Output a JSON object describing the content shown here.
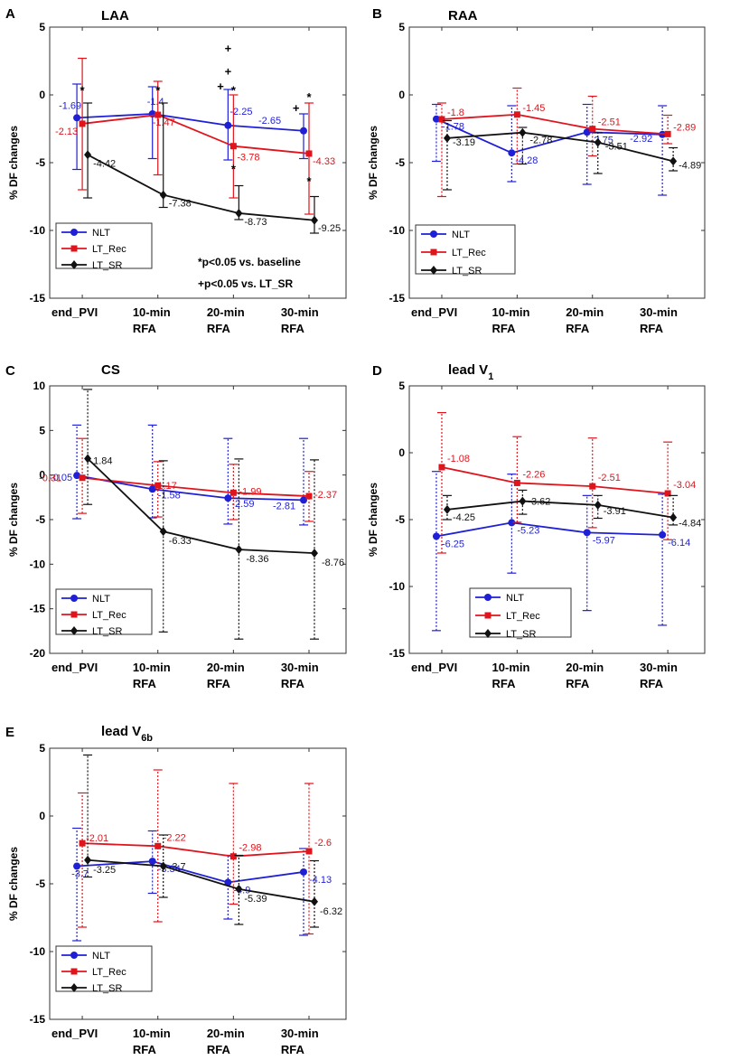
{
  "colors": {
    "NLT": "#1f1fd6",
    "LT_Rec": "#e0141c",
    "LT_SR": "#111111"
  },
  "chart_data": [
    {
      "panel": "A",
      "title": "LAA",
      "type": "line",
      "ylabel": "% DF changes",
      "ylim": [
        -15,
        5
      ],
      "yticks": [
        "5",
        "0",
        "-5",
        "-10",
        "-15"
      ],
      "ytick_values": [
        5,
        0,
        -5,
        -10,
        -15
      ],
      "categories": [
        [
          "end_PVI"
        ],
        [
          "10-min",
          "RFA"
        ],
        [
          "20-min",
          "RFA"
        ],
        [
          "30-min",
          "RFA"
        ]
      ],
      "errorbar_style": "solid",
      "series": [
        {
          "name": "NLT",
          "values": [
            -1.69,
            -1.4,
            -2.25,
            -2.65
          ],
          "labels": [
            "-1.69",
            "-1.4",
            "-2.25",
            "-2.65"
          ],
          "err_low": [
            -5.5,
            -4.7,
            -4.8,
            -4.7
          ],
          "err_high": [
            0.8,
            0.6,
            0.4,
            -1.4
          ]
        },
        {
          "name": "LT_Rec",
          "values": [
            -2.13,
            -1.47,
            -3.78,
            -4.33
          ],
          "labels": [
            "-2.13",
            "-1.47",
            "-3.78",
            "-4.33"
          ],
          "err_low": [
            -7.0,
            -5.9,
            -7.6,
            -8.8
          ],
          "err_high": [
            2.7,
            1.0,
            0.0,
            -0.6
          ]
        },
        {
          "name": "LT_SR",
          "values": [
            -4.42,
            -7.38,
            -8.73,
            -9.25
          ],
          "labels": [
            "-4.42",
            "-7.38",
            "-8.73",
            "-9.25"
          ],
          "err_low": [
            -7.6,
            -8.3,
            -9.2,
            -10.2
          ],
          "err_high": [
            -0.6,
            -0.6,
            -6.7,
            -7.5
          ]
        }
      ],
      "significance": [
        {
          "x": 1,
          "y": 0.3,
          "text": "*"
        },
        {
          "x": 2,
          "y": 0.3,
          "text": "*"
        },
        {
          "x": 3,
          "y": 0.3,
          "text": "*"
        },
        {
          "x": 3,
          "y": 1.7,
          "text": "+"
        },
        {
          "x": 3,
          "y": 3.4,
          "text": "+"
        },
        {
          "x": 2.9,
          "y": 0.6,
          "text": "+"
        },
        {
          "x": 3.9,
          "y": -1.0,
          "text": "+"
        },
        {
          "x": 4,
          "y": -0.2,
          "text": "*"
        },
        {
          "x": 3,
          "y": -5.5,
          "text": "*"
        },
        {
          "x": 4,
          "y": -6.4,
          "text": "*"
        }
      ],
      "notes": [
        "*p<0.05 vs. baseline",
        "+p<0.05 vs. LT_SR"
      ],
      "legend": [
        "NLT",
        "LT_Rec",
        "LT_SR"
      ]
    },
    {
      "panel": "B",
      "title": "RAA",
      "type": "line",
      "ylabel": "% DF changes",
      "ylim": [
        -15,
        5
      ],
      "yticks": [
        "5",
        "0",
        "-5",
        "-10",
        "-15"
      ],
      "ytick_values": [
        5,
        0,
        -5,
        -10,
        -15
      ],
      "categories": [
        [
          "end_PVI"
        ],
        [
          "10-min",
          "RFA"
        ],
        [
          "20-min",
          "RFA"
        ],
        [
          "30-min",
          "RFA"
        ]
      ],
      "errorbar_style": "dotted",
      "series": [
        {
          "name": "NLT",
          "values": [
            -1.78,
            -4.28,
            -2.75,
            -2.92
          ],
          "labels": [
            "-1.78",
            "-4.28",
            "-2.75",
            "-2.92"
          ],
          "err_low": [
            -4.9,
            -6.4,
            -6.6,
            -7.4
          ],
          "err_high": [
            -0.7,
            -0.8,
            -0.7,
            -0.8
          ]
        },
        {
          "name": "LT_Rec",
          "values": [
            -1.8,
            -1.45,
            -2.51,
            -2.89
          ],
          "labels": [
            "-1.8",
            "-1.45",
            "-2.51",
            "-2.89"
          ],
          "err_low": [
            -7.5,
            -5.1,
            -4.5,
            -3.6
          ],
          "err_high": [
            -0.6,
            0.5,
            -0.1,
            -1.5
          ]
        },
        {
          "name": "LT_SR",
          "values": [
            -3.19,
            -2.78,
            -3.51,
            -4.89
          ],
          "labels": [
            "-3.19",
            "-2.78",
            "-3.51",
            "-4.89"
          ],
          "err_low": [
            -7.0,
            -5.1,
            -5.8,
            -5.6
          ],
          "err_high": [
            -1.9,
            -2.4,
            -2.8,
            -3.9
          ]
        }
      ],
      "legend": [
        "NLT",
        "LT_Rec",
        "LT_SR"
      ]
    },
    {
      "panel": "C",
      "title": "CS",
      "type": "line",
      "ylabel": "% DF changes",
      "ylim": [
        -20,
        10
      ],
      "yticks": [
        "10",
        "5",
        "0",
        "-5",
        "-10",
        "-15",
        "-20"
      ],
      "ytick_values": [
        10,
        5,
        0,
        -5,
        -10,
        -15,
        -20
      ],
      "categories": [
        [
          "end_PVI"
        ],
        [
          "10-min",
          "RFA"
        ],
        [
          "20-min",
          "RFA"
        ],
        [
          "30-min",
          "RFA"
        ]
      ],
      "errorbar_style": "dotted",
      "series": [
        {
          "name": "NLT",
          "values": [
            -0.05,
            -1.58,
            -2.59,
            -2.81
          ],
          "labels": [
            "-0.05",
            "-1.58",
            "-2.59",
            "-2.81"
          ],
          "err_low": [
            -4.9,
            -4.8,
            -5.5,
            -5.6
          ],
          "err_high": [
            5.6,
            5.6,
            4.1,
            4.1
          ]
        },
        {
          "name": "LT_Rec",
          "values": [
            -0.31,
            -1.17,
            -1.99,
            -2.37
          ],
          "labels": [
            "-0.31",
            "-1.17",
            "-1.99",
            "-2.37"
          ],
          "err_low": [
            -4.3,
            -4.7,
            -5.0,
            -5.2
          ],
          "err_high": [
            4.1,
            1.5,
            1.2,
            0.4
          ]
        },
        {
          "name": "LT_SR",
          "values": [
            1.84,
            -6.33,
            -8.36,
            -8.76
          ],
          "labels": [
            "1.84",
            "-6.33",
            "-8.36",
            "-8.76"
          ],
          "err_low": [
            -3.3,
            -17.6,
            -18.4,
            -18.4
          ],
          "err_high": [
            9.6,
            1.6,
            1.8,
            1.7
          ]
        }
      ],
      "legend": [
        "NLT",
        "LT_Rec",
        "LT_SR"
      ]
    },
    {
      "panel": "D",
      "title": "lead V",
      "title_sub": "1",
      "type": "line",
      "ylabel": "% DF changes",
      "ylim": [
        -15,
        5
      ],
      "yticks": [
        "5",
        "0",
        "-5",
        "-10",
        "-15"
      ],
      "ytick_values": [
        5,
        0,
        -5,
        -10,
        -15
      ],
      "categories": [
        [
          "end_PVI"
        ],
        [
          "10-min",
          "RFA"
        ],
        [
          "20-min",
          "RFA"
        ],
        [
          "30-min",
          "RFA"
        ]
      ],
      "errorbar_style": "dotted",
      "series": [
        {
          "name": "NLT",
          "values": [
            -6.25,
            -5.23,
            -5.97,
            -6.14
          ],
          "labels": [
            "-6.25",
            "-5.23",
            "-5.97",
            "-6.14"
          ],
          "err_low": [
            -13.3,
            -9.0,
            -11.8,
            -12.9
          ],
          "err_high": [
            -1.4,
            -1.6,
            -3.2,
            -3.1
          ]
        },
        {
          "name": "LT_Rec",
          "values": [
            -1.08,
            -2.26,
            -2.51,
            -3.04
          ],
          "labels": [
            "-1.08",
            "-2.26",
            "-2.51",
            "-3.04"
          ],
          "err_low": [
            -7.5,
            -5.2,
            -5.6,
            -6.5
          ],
          "err_high": [
            3.0,
            1.2,
            1.1,
            0.8
          ]
        },
        {
          "name": "LT_SR",
          "values": [
            -4.25,
            -3.62,
            -3.91,
            -4.84
          ],
          "labels": [
            "-4.25",
            "-3.62",
            "-3.91",
            "-4.84"
          ],
          "err_low": [
            -5.0,
            -4.6,
            -4.9,
            -5.4
          ],
          "err_high": [
            -3.2,
            -2.8,
            -3.2,
            -3.2
          ]
        }
      ],
      "legend": [
        "NLT",
        "LT_Rec",
        "LT_SR"
      ]
    },
    {
      "panel": "E",
      "title": "lead V",
      "title_sub": "6b",
      "type": "line",
      "ylabel": "% DF changes",
      "ylim": [
        -15,
        5
      ],
      "yticks": [
        "5",
        "0",
        "-5",
        "-10",
        "-15"
      ],
      "ytick_values": [
        5,
        0,
        -5,
        -10,
        -15
      ],
      "categories": [
        [
          "end_PVI"
        ],
        [
          "10-min",
          "RFA"
        ],
        [
          "20-min",
          "RFA"
        ],
        [
          "30-min",
          "RFA"
        ]
      ],
      "errorbar_style": "dotted",
      "series": [
        {
          "name": "NLT",
          "values": [
            -3.7,
            -3.34,
            -4.9,
            -4.13
          ],
          "labels": [
            "-3.7",
            "-3.34",
            "-4.9",
            "-4.13"
          ],
          "err_low": [
            -9.2,
            -5.7,
            -7.6,
            -8.8
          ],
          "err_high": [
            -0.9,
            -1.1,
            -2.9,
            -2.4
          ]
        },
        {
          "name": "LT_Rec",
          "values": [
            -2.01,
            -2.22,
            -2.98,
            -2.6
          ],
          "labels": [
            "-2.01",
            "-2.22",
            "-2.98",
            "-2.6"
          ],
          "err_low": [
            -8.2,
            -7.8,
            -6.5,
            -8.7
          ],
          "err_high": [
            1.7,
            3.4,
            2.4,
            2.4
          ]
        },
        {
          "name": "LT_SR",
          "values": [
            -3.25,
            -3.7,
            -5.39,
            -6.32
          ],
          "labels": [
            "-3.25",
            "-3.7",
            "-5.39",
            "-6.32"
          ],
          "err_low": [
            -4.5,
            -6.0,
            -8.0,
            -8.2
          ],
          "err_high": [
            4.5,
            -1.4,
            -2.9,
            -3.3
          ]
        }
      ],
      "legend": [
        "NLT",
        "LT_Rec",
        "LT_SR"
      ]
    }
  ]
}
